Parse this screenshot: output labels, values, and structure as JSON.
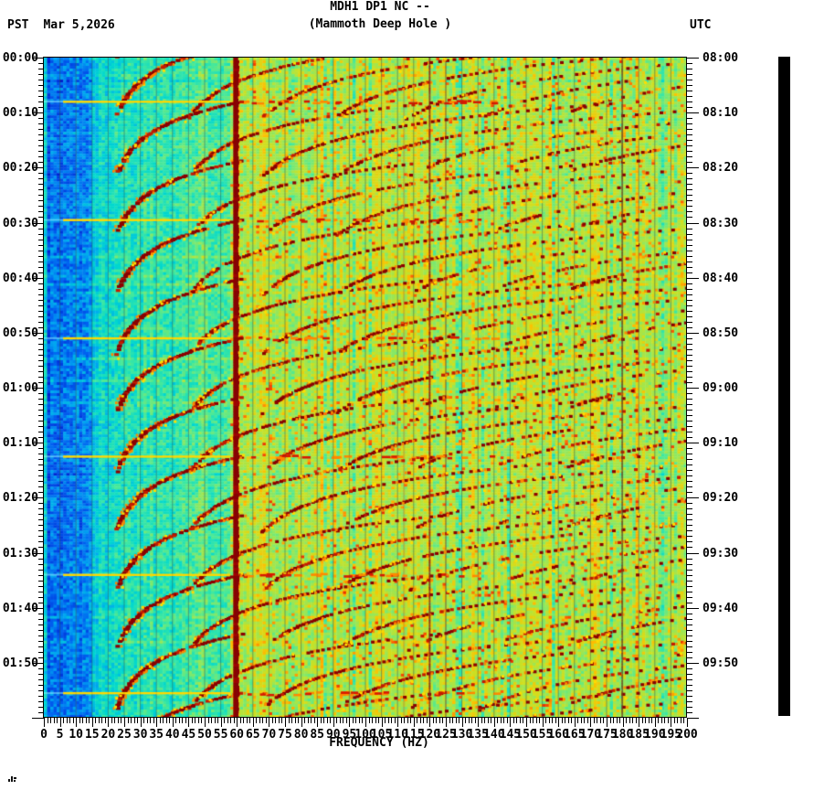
{
  "header": {
    "timezone_left": "PST",
    "date": "Mar 5,2026",
    "title_line1": "MDH1 DP1 NC --",
    "title_line2": "(Mammoth Deep Hole )",
    "timezone_right": "UTC"
  },
  "chart_data": {
    "type": "heatmap",
    "kind": "seismic-spectrogram",
    "station": "MDH1 DP1 NC",
    "station_description": "Mammoth Deep Hole",
    "date_pst": "Mar 5,2026",
    "xlabel": "FREQUENCY (HZ)",
    "x_range_hz": [
      0,
      200
    ],
    "x_major_tick_hz": 5,
    "x_minor_tick_hz": 1,
    "x_tick_labels": [
      "0",
      "5",
      "10",
      "15",
      "20",
      "25",
      "30",
      "35",
      "40",
      "45",
      "50",
      "55",
      "60",
      "65",
      "70",
      "75",
      "80",
      "85",
      "90",
      "95",
      "100",
      "105",
      "110",
      "115",
      "120",
      "125",
      "130",
      "135",
      "140",
      "145",
      "150",
      "155",
      "160",
      "165",
      "170",
      "175",
      "180",
      "185",
      "190",
      "195",
      "200"
    ],
    "time_span_minutes": 120,
    "time_major_tick_minutes": 10,
    "time_minor_tick_minutes": 1,
    "left_axis": {
      "timezone": "PST",
      "labels": [
        "00:00",
        "00:10",
        "00:20",
        "00:30",
        "00:40",
        "00:50",
        "01:00",
        "01:10",
        "01:20",
        "01:30",
        "01:40",
        "01:50"
      ]
    },
    "right_axis": {
      "timezone": "UTC",
      "labels": [
        "08:00",
        "08:10",
        "08:20",
        "08:30",
        "08:40",
        "08:50",
        "09:00",
        "09:10",
        "09:20",
        "09:30",
        "09:40",
        "09:50"
      ]
    },
    "features": {
      "mains_hum_lines_hz": [
        60,
        120,
        180
      ],
      "faint_vertical_lines_hz": [
        112,
        125
      ],
      "background_zones": [
        {
          "hz": [
            0,
            14
          ],
          "tone": "deep blue noise"
        },
        {
          "hz": [
            14,
            20
          ],
          "tone": "blue-cyan transition"
        },
        {
          "hz": [
            20,
            58
          ],
          "tone": "cyan"
        },
        {
          "hz": [
            58,
            200
          ],
          "tone": "green-yellow speckle with orange/red flecks"
        }
      ],
      "glide_events": {
        "description": "repeating harmonic down-glides: fundamental decays ~62 Hz to ~20 Hz asymptote, harmonics visible to ~200 Hz; broadband yellow burst row at each major event",
        "start_minutes": [
          -13.5,
          -2.75,
          8,
          18.75,
          29.5,
          40.25,
          51,
          61.75,
          72.5,
          83.25,
          94,
          104.75,
          115.5
        ],
        "major_every": 2,
        "fundamental_start_hz": 62,
        "fundamental_asymptote_hz": 20,
        "decay_tau_minutes": 5,
        "duration_minutes": 14,
        "harmonics": 7
      }
    },
    "colormap_stops": [
      [
        0.0,
        0,
        0,
        128
      ],
      [
        0.1,
        0,
        32,
        208
      ],
      [
        0.2,
        0,
        96,
        240
      ],
      [
        0.3,
        0,
        168,
        240
      ],
      [
        0.4,
        0,
        216,
        208
      ],
      [
        0.5,
        64,
        232,
        160
      ],
      [
        0.6,
        144,
        232,
        96
      ],
      [
        0.7,
        208,
        224,
        32
      ],
      [
        0.8,
        255,
        192,
        0
      ],
      [
        0.88,
        255,
        96,
        0
      ],
      [
        0.94,
        224,
        24,
        0
      ],
      [
        1.0,
        139,
        0,
        0
      ]
    ],
    "legend": "none",
    "grid": "vertical 5 Hz lines"
  }
}
